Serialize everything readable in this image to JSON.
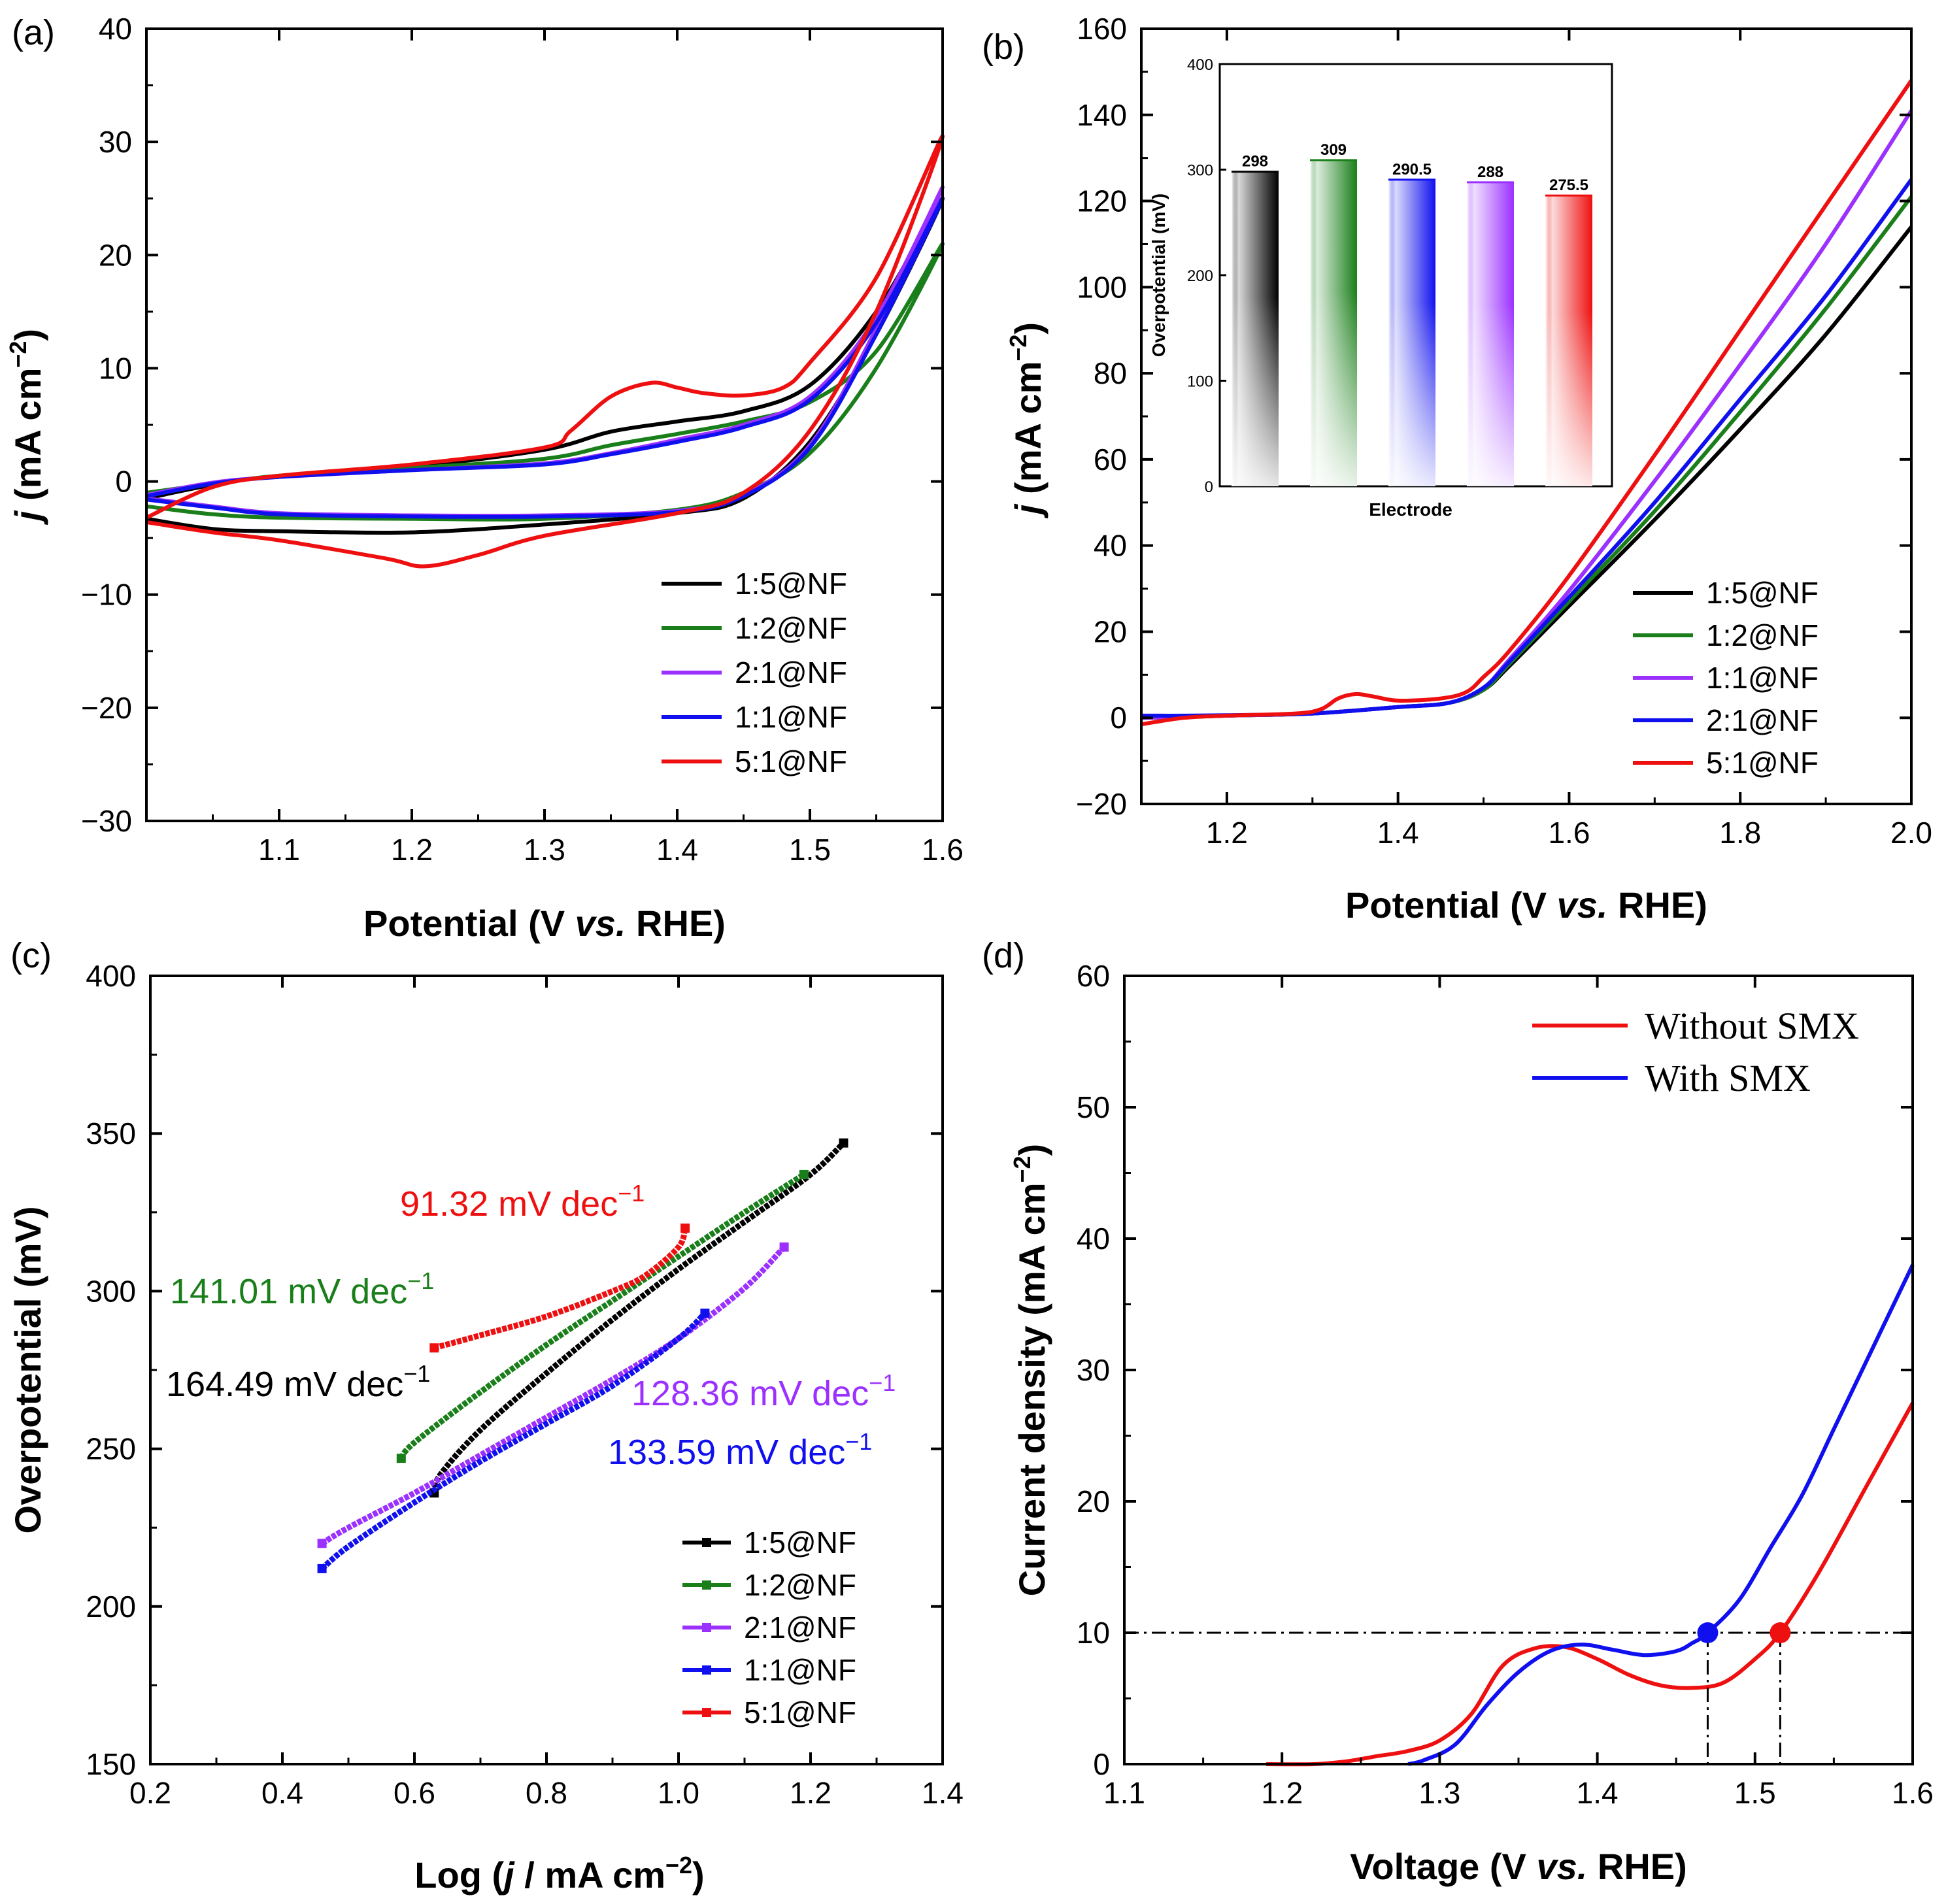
{
  "colors": {
    "black": "#000000",
    "green": "#1a7f1a",
    "purple": "#9b30ff",
    "blue": "#1010ee",
    "red": "#ee1010"
  },
  "chart_data": [
    {
      "id": "a",
      "panel_label": "(a)",
      "type": "line",
      "title": "",
      "xlabel": "Potential (V vs. RHE)",
      "ylabel": "j (mA cm−2)",
      "xlim": [
        1.0,
        1.6
      ],
      "ylim": [
        -30,
        40
      ],
      "xticks": [
        1.1,
        1.2,
        1.3,
        1.4,
        1.5,
        1.6
      ],
      "xtick_labels": [
        "1.1",
        "1.2",
        "1.3",
        "1.4",
        "1.5",
        "1.6"
      ],
      "yticks": [
        -30,
        -20,
        -10,
        0,
        10,
        20,
        30,
        40
      ],
      "ytick_labels": [
        "−30",
        "−20",
        "−10",
        "0",
        "10",
        "20",
        "30",
        "40"
      ],
      "legend_position": "bottom-right",
      "series": [
        {
          "name": "1:5@NF",
          "color": "#000000",
          "x": [
            1.0,
            1.05,
            1.1,
            1.2,
            1.3,
            1.35,
            1.4,
            1.45,
            1.5,
            1.55,
            1.6,
            1.55,
            1.5,
            1.45,
            1.4,
            1.3,
            1.2,
            1.1,
            1.05,
            1.0
          ],
          "y": [
            -1.5,
            -0.3,
            0.5,
            1.3,
            2.8,
            4.4,
            5.3,
            6.2,
            8.5,
            15.0,
            25.0,
            13.0,
            3.5,
            -1.5,
            -2.8,
            -3.8,
            -4.5,
            -4.4,
            -4.2,
            -3.3
          ]
        },
        {
          "name": "1:2@NF",
          "color": "#1a7f1a",
          "x": [
            1.0,
            1.05,
            1.1,
            1.2,
            1.3,
            1.35,
            1.4,
            1.45,
            1.5,
            1.55,
            1.6,
            1.55,
            1.5,
            1.45,
            1.4,
            1.3,
            1.2,
            1.1,
            1.05,
            1.0
          ],
          "y": [
            -1.0,
            -0.2,
            0.5,
            1.2,
            2.0,
            3.2,
            4.2,
            5.3,
            7.0,
            11.5,
            21.0,
            10.0,
            2.5,
            -1.0,
            -2.5,
            -3.3,
            -3.3,
            -3.2,
            -2.9,
            -2.2
          ]
        },
        {
          "name": "2:1@NF",
          "color": "#9b30ff",
          "x": [
            1.0,
            1.05,
            1.1,
            1.2,
            1.3,
            1.35,
            1.4,
            1.45,
            1.5,
            1.55,
            1.6,
            1.55,
            1.5,
            1.45,
            1.4,
            1.3,
            1.2,
            1.1,
            1.05,
            1.0
          ],
          "y": [
            -1.2,
            -0.1,
            0.4,
            1.0,
            1.6,
            2.5,
            3.7,
            5.0,
            7.5,
            14.5,
            26.0,
            13.5,
            3.2,
            -1.2,
            -2.6,
            -3.0,
            -3.0,
            -2.8,
            -2.2,
            -1.5
          ]
        },
        {
          "name": "1:1@NF",
          "color": "#1010ee",
          "x": [
            1.0,
            1.05,
            1.1,
            1.2,
            1.3,
            1.35,
            1.4,
            1.45,
            1.5,
            1.55,
            1.6,
            1.55,
            1.5,
            1.45,
            1.4,
            1.3,
            1.2,
            1.1,
            1.05,
            1.0
          ],
          "y": [
            -1.3,
            -0.2,
            0.4,
            1.0,
            1.5,
            2.4,
            3.5,
            4.8,
            7.2,
            14.0,
            25.0,
            13.0,
            3.0,
            -1.3,
            -2.7,
            -3.1,
            -3.1,
            -2.9,
            -2.3,
            -1.6
          ]
        },
        {
          "name": "5:1@NF",
          "color": "#ee1010",
          "x": [
            1.0,
            1.05,
            1.1,
            1.2,
            1.3,
            1.32,
            1.35,
            1.38,
            1.4,
            1.42,
            1.45,
            1.48,
            1.5,
            1.55,
            1.6,
            1.55,
            1.5,
            1.45,
            1.4,
            1.3,
            1.25,
            1.21,
            1.18,
            1.1,
            1.05,
            1.0
          ],
          "y": [
            -3.2,
            -0.5,
            0.5,
            1.5,
            3.0,
            4.5,
            7.5,
            8.7,
            8.3,
            7.8,
            7.6,
            8.3,
            10.5,
            18.0,
            30.5,
            15.0,
            4.5,
            -1.0,
            -2.8,
            -4.8,
            -6.5,
            -7.5,
            -6.8,
            -5.2,
            -4.5,
            -3.6
          ]
        }
      ]
    },
    {
      "id": "b",
      "panel_label": "(b)",
      "type": "line",
      "title": "",
      "xlabel": "Potential (V vs. RHE)",
      "ylabel": "j (mA cm−2)",
      "xlim": [
        1.1,
        2.0
      ],
      "ylim": [
        -20,
        160
      ],
      "xticks": [
        1.2,
        1.4,
        1.6,
        1.8,
        2.0
      ],
      "xtick_labels": [
        "1.2",
        "1.4",
        "1.6",
        "1.8",
        "2.0"
      ],
      "yticks": [
        -20,
        0,
        20,
        40,
        60,
        80,
        100,
        120,
        140,
        160
      ],
      "ytick_labels": [
        "−20",
        "0",
        "20",
        "40",
        "60",
        "80",
        "100",
        "120",
        "140",
        "160"
      ],
      "legend_position": "bottom-right",
      "series": [
        {
          "name": "1:5@NF",
          "color": "#000000",
          "x": [
            1.1,
            1.15,
            1.2,
            1.3,
            1.4,
            1.46,
            1.5,
            1.53,
            1.6,
            1.7,
            1.8,
            1.9,
            2.0
          ],
          "y": [
            0.0,
            0.2,
            0.5,
            1.0,
            2.5,
            3.5,
            6.5,
            12.0,
            26.0,
            46.0,
            67.0,
            89.0,
            114.0
          ]
        },
        {
          "name": "1:2@NF",
          "color": "#1a7f1a",
          "x": [
            1.1,
            1.15,
            1.2,
            1.3,
            1.4,
            1.46,
            1.5,
            1.53,
            1.6,
            1.7,
            1.8,
            1.9,
            2.0
          ],
          "y": [
            0.0,
            0.2,
            0.5,
            1.0,
            2.5,
            3.5,
            6.5,
            12.5,
            27.0,
            48.0,
            71.0,
            95.0,
            121.0
          ]
        },
        {
          "name": "1:1@NF",
          "color": "#9b30ff",
          "x": [
            1.1,
            1.15,
            1.2,
            1.3,
            1.4,
            1.46,
            1.5,
            1.53,
            1.6,
            1.7,
            1.8,
            1.9,
            2.0
          ],
          "y": [
            0.0,
            0.2,
            0.5,
            1.0,
            2.5,
            3.5,
            7.0,
            13.5,
            29.5,
            55.0,
            82.0,
            110.0,
            141.0
          ]
        },
        {
          "name": "2:1@NF",
          "color": "#1010ee",
          "x": [
            1.1,
            1.15,
            1.2,
            1.3,
            1.4,
            1.46,
            1.5,
            1.53,
            1.6,
            1.7,
            1.8,
            1.9,
            2.0
          ],
          "y": [
            0.5,
            0.5,
            0.6,
            1.0,
            2.5,
            3.5,
            7.0,
            13.0,
            28.0,
            50.0,
            74.0,
            98.0,
            125.0
          ]
        },
        {
          "name": "5:1@NF",
          "color": "#ee1010",
          "x": [
            1.1,
            1.15,
            1.2,
            1.28,
            1.31,
            1.33,
            1.35,
            1.37,
            1.4,
            1.45,
            1.48,
            1.5,
            1.53,
            1.6,
            1.7,
            1.8,
            1.9,
            2.0
          ],
          "y": [
            -1.5,
            0.0,
            0.5,
            1.0,
            2.0,
            4.5,
            5.5,
            5.0,
            4.0,
            4.5,
            6.0,
            9.5,
            15.5,
            33.0,
            61.0,
            90.0,
            119.0,
            148.0
          ]
        }
      ]
    },
    {
      "id": "b-inset",
      "type": "bar",
      "title": "",
      "xlabel": "Electrode",
      "ylabel": "Overpotential (mV)",
      "ylim": [
        0,
        400
      ],
      "yticks": [
        0,
        100,
        200,
        300,
        400
      ],
      "ytick_labels": [
        "0",
        "100",
        "200",
        "300",
        "400"
      ],
      "categories": [
        "1:5@NF",
        "1:2@NF",
        "2:1@NF",
        "1:1@NF",
        "5:1@NF"
      ],
      "values": [
        298,
        309,
        290.5,
        288,
        275.5
      ],
      "value_labels": [
        "298",
        "309",
        "290.5",
        "288",
        "275.5"
      ],
      "colors": [
        "#000000",
        "#1a7f1a",
        "#1010ee",
        "#9b30ff",
        "#ee1010"
      ]
    },
    {
      "id": "c",
      "panel_label": "(c)",
      "type": "scatter",
      "title": "",
      "xlabel": "Log (j / mA cm−2)",
      "ylabel": "Overpotential (mV)",
      "xlim": [
        0.2,
        1.4
      ],
      "ylim": [
        150,
        400
      ],
      "xticks": [
        0.2,
        0.4,
        0.6,
        0.8,
        1.0,
        1.2,
        1.4
      ],
      "xtick_labels": [
        "0.2",
        "0.4",
        "0.6",
        "0.8",
        "1.0",
        "1.2",
        "1.4"
      ],
      "yticks": [
        150,
        200,
        250,
        300,
        350,
        400
      ],
      "ytick_labels": [
        "150",
        "200",
        "250",
        "300",
        "350",
        "400"
      ],
      "legend_position": "bottom-right",
      "series": [
        {
          "name": "1:5@NF",
          "color": "#000000",
          "x_start": 0.63,
          "x_end": 1.25,
          "curve": [
            [
              0.63,
              236
            ],
            [
              0.64,
              242
            ],
            [
              0.7,
              256
            ],
            [
              0.8,
              274
            ],
            [
              0.9,
              291
            ],
            [
              1.0,
              307
            ],
            [
              1.1,
              322
            ],
            [
              1.2,
              337
            ],
            [
              1.25,
              347
            ]
          ]
        },
        {
          "name": "1:2@NF",
          "color": "#1a7f1a",
          "x_start": 0.58,
          "x_end": 1.19,
          "curve": [
            [
              0.58,
              247
            ],
            [
              0.6,
              252
            ],
            [
              0.7,
              268
            ],
            [
              0.8,
              283
            ],
            [
              0.9,
              297
            ],
            [
              1.0,
              311
            ],
            [
              1.1,
              325
            ],
            [
              1.19,
              337
            ]
          ]
        },
        {
          "name": "2:1@NF",
          "color": "#9b30ff",
          "x_start": 0.46,
          "x_end": 1.16,
          "curve": [
            [
              0.46,
              220
            ],
            [
              0.5,
              225
            ],
            [
              0.6,
              236
            ],
            [
              0.7,
              248
            ],
            [
              0.8,
              260
            ],
            [
              0.9,
              272
            ],
            [
              1.0,
              285
            ],
            [
              1.1,
              301
            ],
            [
              1.16,
              314
            ]
          ]
        },
        {
          "name": "1:1@NF",
          "color": "#1010ee",
          "x_start": 0.46,
          "x_end": 1.04,
          "curve": [
            [
              0.46,
              212
            ],
            [
              0.5,
              219
            ],
            [
              0.6,
              233
            ],
            [
              0.7,
              246
            ],
            [
              0.8,
              258
            ],
            [
              0.9,
              270
            ],
            [
              1.0,
              285
            ],
            [
              1.04,
              293
            ]
          ]
        },
        {
          "name": "5:1@NF",
          "color": "#ee1010",
          "x_start": 0.63,
          "x_end": 1.01,
          "curve": [
            [
              0.63,
              282
            ],
            [
              0.7,
              286
            ],
            [
              0.8,
              292
            ],
            [
              0.9,
              300
            ],
            [
              0.95,
              305
            ],
            [
              1.0,
              314
            ],
            [
              1.01,
              320
            ]
          ]
        }
      ],
      "annotations": [
        {
          "text": "91.32 mV dec−1",
          "color": "#ee1010"
        },
        {
          "text": "141.01 mV dec−1",
          "color": "#1a7f1a"
        },
        {
          "text": "164.49 mV dec−1",
          "color": "#000000"
        },
        {
          "text": "128.36 mV dec−1",
          "color": "#9b30ff"
        },
        {
          "text": "133.59 mV dec−1",
          "color": "#1010ee"
        }
      ]
    },
    {
      "id": "d",
      "panel_label": "(d)",
      "type": "line",
      "title": "",
      "xlabel": "Voltage (V vs. RHE)",
      "ylabel": "Current density (mA cm−2)",
      "xlim": [
        1.1,
        1.6
      ],
      "ylim": [
        0,
        60
      ],
      "xticks": [
        1.1,
        1.2,
        1.3,
        1.4,
        1.5,
        1.6
      ],
      "xtick_labels": [
        "1.1",
        "1.2",
        "1.3",
        "1.4",
        "1.5",
        "1.6"
      ],
      "yticks": [
        0,
        10,
        20,
        30,
        40,
        50,
        60
      ],
      "ytick_labels": [
        "0",
        "10",
        "20",
        "30",
        "40",
        "50",
        "60"
      ],
      "legend_position": "top-right",
      "reference_line_y": 10,
      "series": [
        {
          "name": "Without SMX",
          "color": "#ee1010",
          "x": [
            1.19,
            1.22,
            1.24,
            1.26,
            1.28,
            1.3,
            1.32,
            1.34,
            1.36,
            1.38,
            1.4,
            1.42,
            1.44,
            1.46,
            1.48,
            1.5,
            1.516,
            1.54,
            1.57,
            1.6
          ],
          "y": [
            0.0,
            0.0,
            0.2,
            0.6,
            1.0,
            1.8,
            3.8,
            7.5,
            8.8,
            8.9,
            8.0,
            6.8,
            6.0,
            5.8,
            6.2,
            8.0,
            10.0,
            14.5,
            21.0,
            27.5
          ],
          "marker": {
            "x": 1.516,
            "y": 10
          }
        },
        {
          "name": "With SMX",
          "color": "#1010ee",
          "x": [
            1.28,
            1.29,
            1.31,
            1.33,
            1.35,
            1.37,
            1.39,
            1.41,
            1.43,
            1.45,
            1.46,
            1.47,
            1.49,
            1.51,
            1.53,
            1.55,
            1.57,
            1.6
          ],
          "y": [
            0.0,
            0.3,
            1.5,
            4.5,
            7.0,
            8.6,
            9.1,
            8.7,
            8.3,
            8.6,
            9.2,
            10.0,
            12.5,
            16.5,
            20.5,
            25.5,
            30.5,
            38.0
          ],
          "marker": {
            "x": 1.47,
            "y": 10
          }
        }
      ]
    }
  ]
}
